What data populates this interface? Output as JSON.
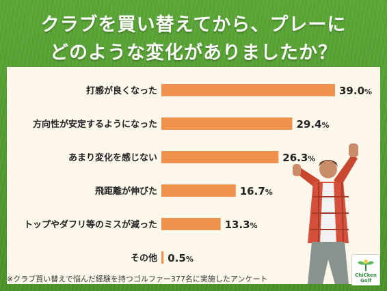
{
  "title": {
    "line1": "クラブを買い替えてから、プレーに",
    "line2": "どのような変化がありましたか？"
  },
  "footnote": "※クラブ買い替えで悩んだ経験を持つゴルファー377名に実施したアンケート",
  "logo": {
    "line1": "ChiCken",
    "line2": "Golf"
  },
  "colors": {
    "bar": "#f0924e",
    "background": "#4f9a2e",
    "panel": "#fdf7ec"
  },
  "chart_data": {
    "type": "bar",
    "orientation": "horizontal",
    "categories": [
      "打感が良くなった",
      "方向性が安定するようになった",
      "あまり変化を感じない",
      "飛距離が伸びた",
      "トップやダフリ等のミスが減った",
      "その他"
    ],
    "values": [
      39.0,
      29.4,
      26.3,
      16.7,
      13.3,
      0.5
    ],
    "value_labels": [
      "39.0",
      "29.4",
      "26.3",
      "16.7",
      "13.3",
      "0.5"
    ],
    "unit": "%",
    "xlim": [
      0,
      39.0
    ],
    "grid": false,
    "legend": "none"
  }
}
